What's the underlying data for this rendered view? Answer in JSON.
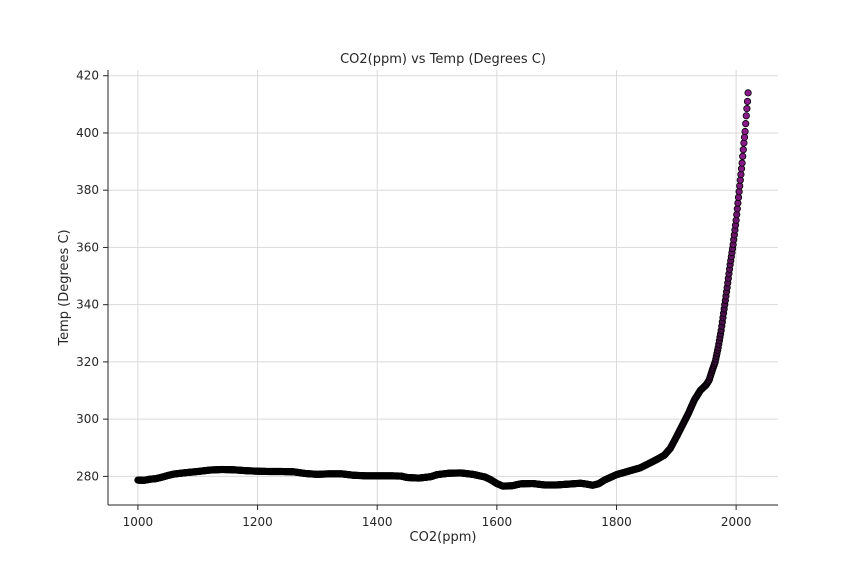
{
  "chart_data": {
    "type": "scatter",
    "title": "CO2(ppm) vs Temp (Degrees C)",
    "xlabel": "CO2(ppm)",
    "ylabel": "Temp (Degrees C)",
    "xlim": [
      950,
      2070
    ],
    "ylim": [
      270,
      422
    ],
    "xticks": [
      1000,
      1200,
      1400,
      1600,
      1800,
      2000
    ],
    "yticks": [
      280,
      300,
      320,
      340,
      360,
      380,
      400,
      420
    ],
    "grid": true,
    "colors": {
      "early": "#120512",
      "late": "#8b1a8b",
      "edge": "#000000",
      "grid": "#d9d9d9",
      "axis": "#262626"
    },
    "curve": [
      [
        1000,
        278.7
      ],
      [
        1010,
        278.6
      ],
      [
        1020,
        279.0
      ],
      [
        1030,
        279.2
      ],
      [
        1040,
        279.7
      ],
      [
        1050,
        280.3
      ],
      [
        1060,
        280.8
      ],
      [
        1080,
        281.3
      ],
      [
        1100,
        281.7
      ],
      [
        1120,
        282.2
      ],
      [
        1140,
        282.4
      ],
      [
        1160,
        282.3
      ],
      [
        1180,
        282.0
      ],
      [
        1200,
        281.8
      ],
      [
        1220,
        281.7
      ],
      [
        1240,
        281.7
      ],
      [
        1260,
        281.6
      ],
      [
        1280,
        281.0
      ],
      [
        1300,
        280.7
      ],
      [
        1320,
        280.9
      ],
      [
        1340,
        280.9
      ],
      [
        1360,
        280.4
      ],
      [
        1380,
        280.2
      ],
      [
        1400,
        280.2
      ],
      [
        1420,
        280.2
      ],
      [
        1440,
        280.1
      ],
      [
        1450,
        279.6
      ],
      [
        1470,
        279.4
      ],
      [
        1490,
        279.9
      ],
      [
        1500,
        280.6
      ],
      [
        1520,
        281.1
      ],
      [
        1540,
        281.2
      ],
      [
        1560,
        280.7
      ],
      [
        1580,
        279.8
      ],
      [
        1590,
        278.8
      ],
      [
        1600,
        277.5
      ],
      [
        1610,
        276.6
      ],
      [
        1625,
        276.7
      ],
      [
        1640,
        277.4
      ],
      [
        1660,
        277.5
      ],
      [
        1680,
        277.0
      ],
      [
        1700,
        277.0
      ],
      [
        1720,
        277.3
      ],
      [
        1740,
        277.6
      ],
      [
        1750,
        277.3
      ],
      [
        1760,
        276.9
      ],
      [
        1770,
        277.4
      ],
      [
        1780,
        278.7
      ],
      [
        1800,
        280.6
      ],
      [
        1820,
        281.8
      ],
      [
        1840,
        283.0
      ],
      [
        1860,
        285.1
      ],
      [
        1870,
        286.2
      ],
      [
        1880,
        287.4
      ],
      [
        1890,
        289.8
      ],
      [
        1900,
        293.7
      ],
      [
        1910,
        297.8
      ],
      [
        1920,
        301.9
      ],
      [
        1930,
        306.6
      ],
      [
        1940,
        310.0
      ],
      [
        1950,
        312.0
      ],
      [
        1955,
        313.7
      ],
      [
        1960,
        317.0
      ],
      [
        1965,
        320.0
      ],
      [
        1970,
        325.0
      ],
      [
        1975,
        331.0
      ],
      [
        1980,
        338.5
      ],
      [
        1985,
        346.0
      ],
      [
        1990,
        354.0
      ],
      [
        1995,
        361.0
      ],
      [
        2000,
        369.5
      ],
      [
        2005,
        379.5
      ],
      [
        2010,
        389.5
      ],
      [
        2013,
        396.5
      ],
      [
        2015,
        400.5
      ],
      [
        2017,
        406.0
      ],
      [
        2019,
        411.0
      ],
      [
        2020,
        414.0
      ]
    ]
  }
}
